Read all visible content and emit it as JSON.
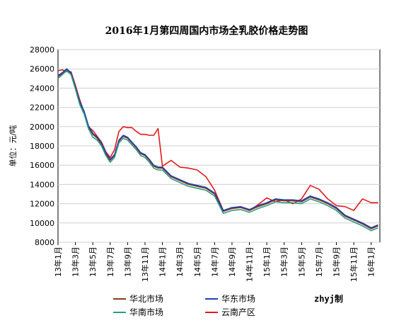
{
  "chart_data": {
    "type": "line",
    "title": "2016年1月第四周国内市场全乳胶价格走势图",
    "ylabel": "单位：元/吨",
    "xlabel": "",
    "ylim": [
      8000,
      28000
    ],
    "y_ticks": [
      8000,
      10000,
      12000,
      14000,
      16000,
      18000,
      20000,
      22000,
      24000,
      26000,
      28000
    ],
    "x_ticks": [
      "13年1月",
      "13年3月",
      "13年5月",
      "13年7月",
      "13年9月",
      "13年11月",
      "14年1月",
      "14年3月",
      "14年5月",
      "14年7月",
      "14年9月",
      "14年11月",
      "15年1月",
      "15年3月",
      "15年5月",
      "15年7月",
      "15年9月",
      "15年11月",
      "16年1月"
    ],
    "grid": true,
    "legend_position": "bottom",
    "series": [
      {
        "name": "华北市场",
        "color": "#8B3A1A",
        "x": [
          0,
          0.5,
          1,
          1.5,
          2,
          2.5,
          3,
          3.5,
          4,
          4.5,
          5,
          5.5,
          6,
          6.5,
          7,
          7.5,
          8,
          8.5,
          9,
          9.5,
          10,
          10.5,
          11,
          11.5,
          12,
          13,
          14,
          15,
          16,
          17,
          18,
          19,
          20,
          21,
          22,
          23,
          24,
          25,
          26,
          27,
          28,
          29,
          30,
          31,
          32,
          33,
          34,
          35,
          36,
          36.8
        ],
        "values": [
          25200,
          25500,
          25900,
          25500,
          24000,
          22500,
          21500,
          20000,
          19200,
          18800,
          18200,
          17200,
          16500,
          17000,
          18500,
          19000,
          18800,
          18300,
          17800,
          17200,
          17000,
          16500,
          15900,
          15700,
          15700,
          14800,
          14400,
          14000,
          13800,
          13600,
          13000,
          11200,
          11500,
          11600,
          11300,
          11700,
          12000,
          12400,
          12300,
          12300,
          12200,
          12700,
          12400,
          12000,
          11500,
          10700,
          10300,
          9900,
          9400,
          9700
        ]
      },
      {
        "name": "华东市场",
        "color": "#1F3FB0",
        "x": [
          0,
          0.5,
          1,
          1.5,
          2,
          2.5,
          3,
          3.5,
          4,
          4.5,
          5,
          5.5,
          6,
          6.5,
          7,
          7.5,
          8,
          8.5,
          9,
          9.5,
          10,
          10.5,
          11,
          11.5,
          12,
          13,
          14,
          15,
          16,
          17,
          18,
          19,
          20,
          21,
          22,
          23,
          24,
          25,
          26,
          27,
          28,
          29,
          30,
          31,
          32,
          33,
          34,
          35,
          36,
          36.8
        ],
        "values": [
          25300,
          25600,
          26000,
          25600,
          24100,
          22600,
          21600,
          20100,
          19300,
          18900,
          18300,
          17300,
          16600,
          17100,
          18600,
          19100,
          18900,
          18400,
          17900,
          17300,
          17100,
          16600,
          16000,
          15800,
          15800,
          14900,
          14500,
          14100,
          13900,
          13700,
          13100,
          11300,
          11600,
          11700,
          11400,
          11800,
          12100,
          12500,
          12400,
          12400,
          12300,
          12800,
          12500,
          12100,
          11600,
          10800,
          10400,
          10000,
          9500,
          9800
        ]
      },
      {
        "name": "华南市场",
        "color": "#2E9C7A",
        "x": [
          0,
          0.5,
          1,
          1.5,
          2,
          2.5,
          3,
          3.5,
          4,
          4.5,
          5,
          5.5,
          6,
          6.5,
          7,
          7.5,
          8,
          8.5,
          9,
          9.5,
          10,
          10.5,
          11,
          11.5,
          12,
          13,
          14,
          15,
          16,
          17,
          18,
          19,
          20,
          21,
          22,
          23,
          24,
          25,
          26,
          27,
          28,
          29,
          30,
          31,
          32,
          33,
          34,
          35,
          36,
          36.8
        ],
        "values": [
          25000,
          25400,
          25800,
          25400,
          23900,
          22300,
          21300,
          19800,
          18900,
          18600,
          18000,
          17000,
          16300,
          16800,
          18300,
          18800,
          18600,
          18100,
          17600,
          17000,
          16800,
          16300,
          15700,
          15500,
          15500,
          14600,
          14200,
          13800,
          13600,
          13400,
          12800,
          11000,
          11300,
          11400,
          11100,
          11500,
          11800,
          12200,
          12100,
          12100,
          12000,
          12500,
          12200,
          11800,
          11300,
          10500,
          10100,
          9700,
          9200,
          9500
        ]
      },
      {
        "name": "云南产区",
        "color": "#E31A1C",
        "x": [
          0,
          0.5,
          1,
          1.5,
          2,
          2.5,
          3,
          3.5,
          4,
          4.5,
          5,
          5.5,
          6,
          6.5,
          7,
          7.5,
          8,
          8.5,
          9,
          9.5,
          10,
          10.5,
          11,
          11.5,
          12,
          13,
          14,
          15,
          16,
          17,
          18,
          19,
          20,
          21,
          22,
          23,
          24,
          25,
          26,
          27,
          28,
          29,
          30,
          31,
          32,
          33,
          34,
          35,
          36,
          36.8
        ],
        "values": [
          25800,
          25900,
          25700,
          25700,
          24300,
          22800,
          21500,
          20000,
          19600,
          19000,
          18400,
          17400,
          16800,
          17600,
          19500,
          20000,
          19900,
          19900,
          19500,
          19200,
          19200,
          19100,
          19100,
          19800,
          15900,
          16500,
          15800,
          15700,
          15500,
          14800,
          13400,
          11300,
          11500,
          11700,
          11300,
          11900,
          12600,
          12200,
          12400,
          12000,
          12500,
          13900,
          13500,
          12500,
          11800,
          11700,
          11300,
          12500,
          12100,
          12100
        ]
      }
    ]
  },
  "legend": {
    "items": [
      {
        "label": "华北市场",
        "color": "#8B3A1A"
      },
      {
        "label": "华东市场",
        "color": "#1F3FB0"
      },
      {
        "label": "华南市场",
        "color": "#2E9C7A"
      },
      {
        "label": "云南产区",
        "color": "#E31A1C"
      }
    ]
  },
  "brand": "zhyj制"
}
